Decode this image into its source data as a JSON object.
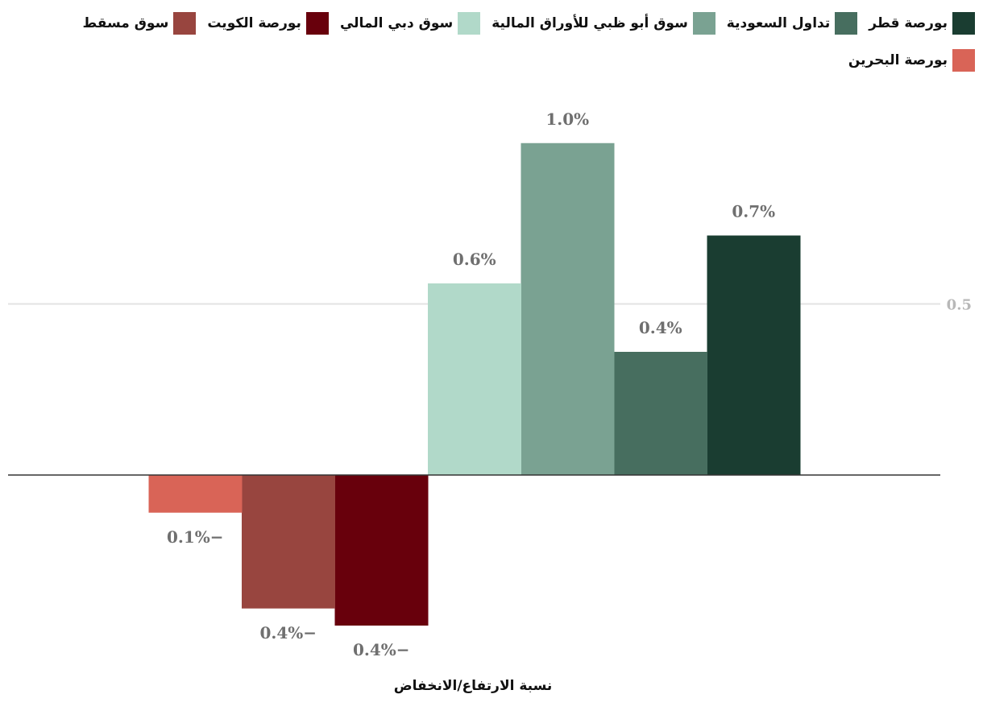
{
  "chart_data": {
    "type": "bar",
    "title": "",
    "xlabel": "نسبة الارتفاع/الانخفاض",
    "ylabel": "",
    "ylim": [
      -0.5,
      1.05
    ],
    "yticks": [
      {
        "value": 0.5,
        "label": "0.5"
      }
    ],
    "grid": true,
    "legend_position": "top",
    "series": [
      {
        "name": "بورصة قطر",
        "value": 0.7,
        "label": "0.7%",
        "color": "#1a3d31"
      },
      {
        "name": "تداول السعودية",
        "value": 0.36,
        "label": "0.4%",
        "color": "#476e5f"
      },
      {
        "name": "سوق أبو ظبي للأوراق المالية",
        "value": 0.97,
        "label": "1.0%",
        "color": "#7aa292"
      },
      {
        "name": "سوق دبي المالي",
        "value": 0.56,
        "label": "0.6%",
        "color": "#b1d9c9"
      },
      {
        "name": "بورصة الكويت",
        "value": -0.44,
        "label": "0.4%−",
        "color": "#68000c"
      },
      {
        "name": "سوق مسقط",
        "value": -0.39,
        "label": "0.4%−",
        "color": "#98453f"
      },
      {
        "name": "بورصة البحرين",
        "value": -0.11,
        "label": "0.1%−",
        "color": "#d96457"
      }
    ]
  }
}
